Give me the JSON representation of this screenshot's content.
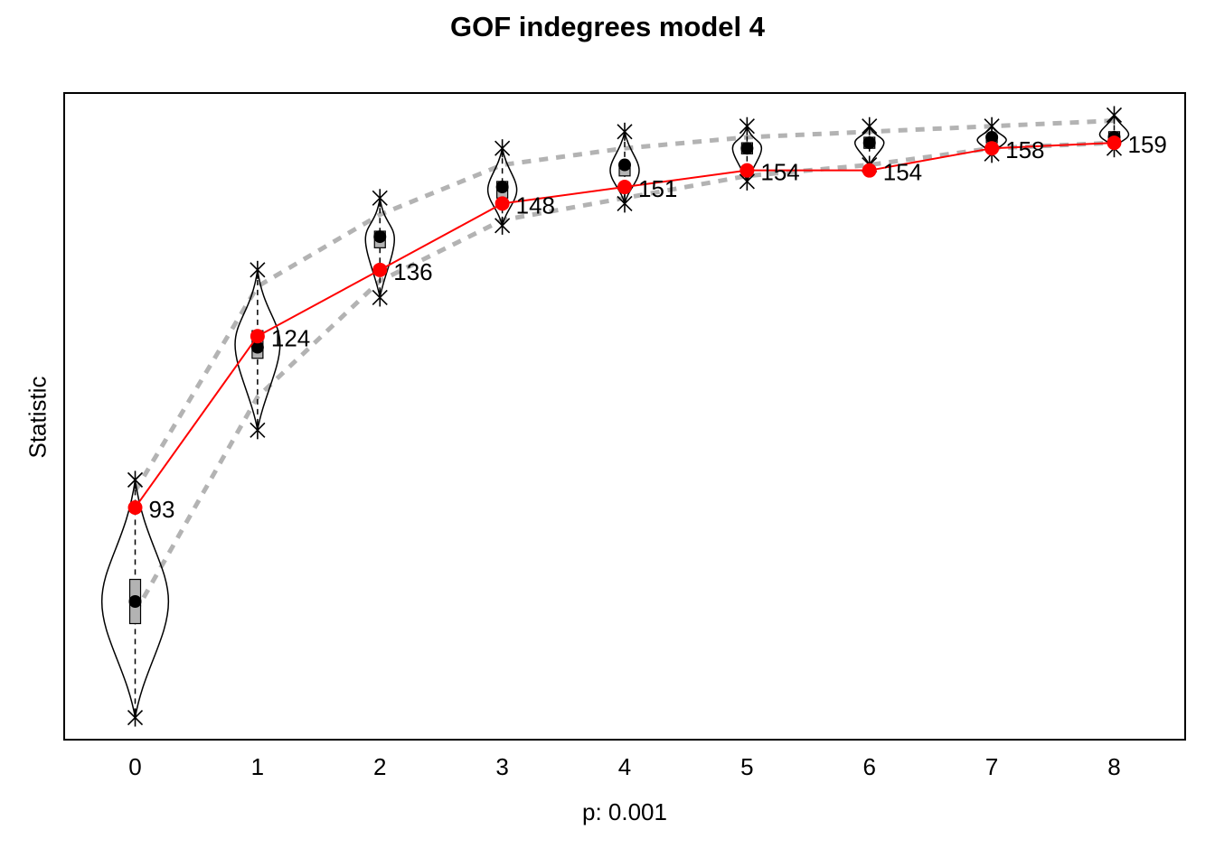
{
  "chart_data": {
    "type": "line",
    "title": "GOF indegrees model 4",
    "xlabel": "p: 0.001",
    "ylabel": "Statistic",
    "x": [
      0,
      1,
      2,
      3,
      4,
      5,
      6,
      7,
      8
    ],
    "xlim": [
      -0.58,
      8.58
    ],
    "ylim": [
      0,
      1
    ],
    "y_tick_labels_shown": false,
    "grid": false,
    "legend": "none",
    "observed": {
      "color": "#ff0000",
      "values": [
        93,
        124,
        136,
        148,
        151,
        154,
        154,
        158,
        159
      ],
      "labels": [
        "93",
        "124",
        "136",
        "148",
        "151",
        "154",
        "154",
        "158",
        "159"
      ]
    },
    "simulated_mean": [
      76,
      122,
      142,
      151,
      155,
      158,
      159,
      160,
      160
    ],
    "simulated_band": {
      "color": "#b3b3b3",
      "lower": [
        74,
        113,
        134,
        145,
        149,
        153,
        155,
        158,
        159
      ],
      "upper": [
        96,
        133,
        146,
        155,
        158,
        160,
        161,
        162,
        163
      ]
    },
    "simulated_box": {
      "q1": [
        72,
        120,
        140,
        149,
        153,
        157,
        158,
        159,
        160
      ],
      "q3": [
        80,
        125,
        143,
        152,
        155,
        159,
        160,
        160,
        161
      ]
    },
    "simulated_extremes": {
      "min": [
        55,
        107,
        131,
        144,
        148,
        152,
        155,
        157,
        158
      ],
      "max": [
        98,
        136,
        149,
        158,
        161,
        162,
        162,
        162,
        164
      ]
    }
  }
}
